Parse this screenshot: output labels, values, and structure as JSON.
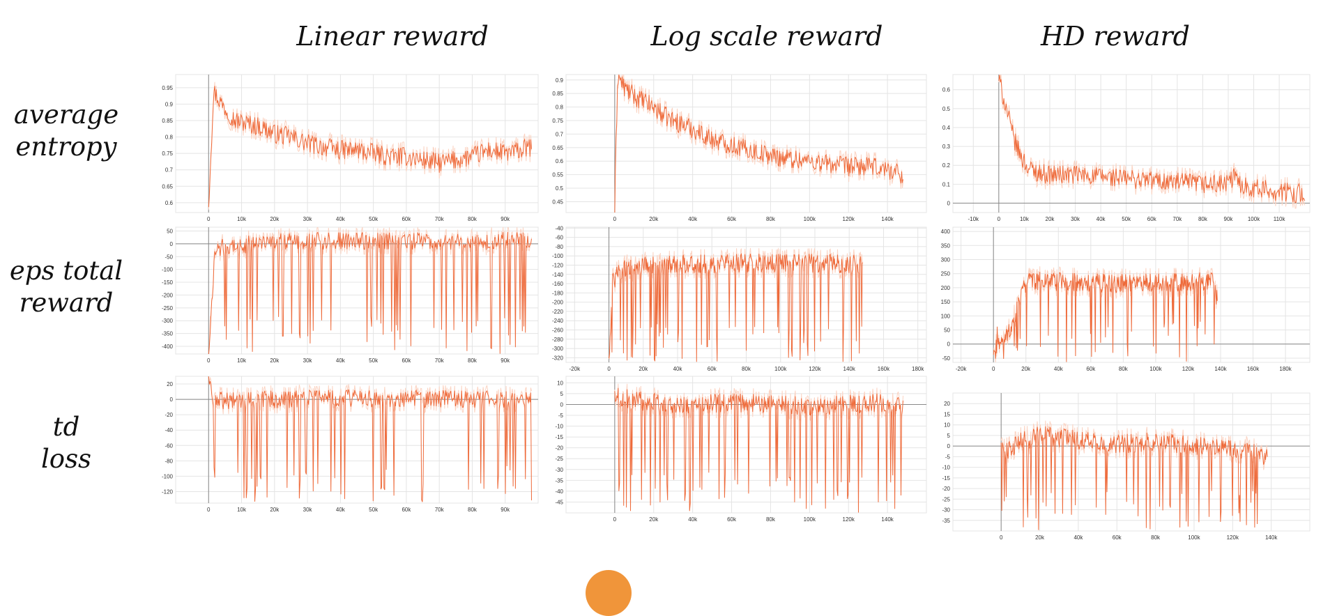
{
  "column_titles": [
    "Linear reward",
    "Log scale reward",
    "HD reward"
  ],
  "row_labels": [
    {
      "line1": "average",
      "line2": "entropy"
    },
    {
      "line1": "eps total",
      "line2": "reward"
    },
    {
      "line1": "td",
      "line2": "loss"
    }
  ],
  "colors": {
    "series": "#ee6a3a",
    "raw": "#fbd3c2",
    "grid": "#e4e4e4",
    "axis": "#888888",
    "page": "#ffffff",
    "accent_dot": "#f0953a"
  },
  "chart_data": [
    {
      "id": "linear-entropy",
      "type": "line",
      "row": "average entropy",
      "column": "Linear reward",
      "x_ticks": [
        0,
        10000,
        20000,
        30000,
        40000,
        50000,
        60000,
        70000,
        80000,
        90000
      ],
      "x_tick_labels": [
        "0",
        "10k",
        "20k",
        "30k",
        "40k",
        "50k",
        "60k",
        "70k",
        "80k",
        "90k"
      ],
      "y_ticks": [
        0.6,
        0.65,
        0.7,
        0.75,
        0.8,
        0.85,
        0.9,
        0.95
      ],
      "y_tick_labels": [
        "0.6",
        "0.65",
        "0.7",
        "0.75",
        "0.8",
        "0.85",
        "0.9",
        "0.95"
      ],
      "xlim": [
        -10000,
        100000
      ],
      "ylim": [
        0.57,
        0.99
      ],
      "grid": true,
      "x": [
        0,
        1500,
        4000,
        8000,
        12000,
        16000,
        20000,
        25000,
        30000,
        35000,
        40000,
        45000,
        50000,
        55000,
        60000,
        65000,
        70000,
        75000,
        80000,
        85000,
        90000,
        95000,
        98000
      ],
      "y": [
        0.6,
        0.94,
        0.9,
        0.85,
        0.84,
        0.83,
        0.81,
        0.8,
        0.78,
        0.77,
        0.76,
        0.76,
        0.75,
        0.74,
        0.74,
        0.73,
        0.72,
        0.73,
        0.74,
        0.76,
        0.75,
        0.76,
        0.77
      ]
    },
    {
      "id": "log-entropy",
      "type": "line",
      "row": "average entropy",
      "column": "Log scale reward",
      "x_ticks": [
        0,
        20000,
        40000,
        60000,
        80000,
        100000,
        120000,
        140000
      ],
      "x_tick_labels": [
        "0",
        "20k",
        "40k",
        "60k",
        "80k",
        "100k",
        "120k",
        "140k"
      ],
      "y_ticks": [
        0.45,
        0.5,
        0.55,
        0.6,
        0.65,
        0.7,
        0.75,
        0.8,
        0.85,
        0.9
      ],
      "y_tick_labels": [
        "0.45",
        "0.5",
        "0.55",
        "0.6",
        "0.65",
        "0.7",
        "0.75",
        "0.8",
        "0.85",
        "0.9"
      ],
      "xlim": [
        -25000,
        160000
      ],
      "ylim": [
        0.41,
        0.92
      ],
      "grid": true,
      "x": [
        0,
        1500,
        5000,
        10000,
        15000,
        20000,
        25000,
        30000,
        40000,
        50000,
        60000,
        70000,
        80000,
        90000,
        100000,
        110000,
        120000,
        130000,
        140000,
        148000
      ],
      "y": [
        0.42,
        0.92,
        0.87,
        0.84,
        0.82,
        0.8,
        0.77,
        0.75,
        0.72,
        0.68,
        0.66,
        0.64,
        0.62,
        0.61,
        0.6,
        0.59,
        0.58,
        0.58,
        0.57,
        0.55
      ]
    },
    {
      "id": "hd-entropy",
      "type": "line",
      "row": "average entropy",
      "column": "HD reward",
      "x_ticks": [
        -10000,
        0,
        10000,
        20000,
        30000,
        40000,
        50000,
        60000,
        70000,
        80000,
        90000,
        100000,
        110000
      ],
      "x_tick_labels": [
        "-10k",
        "0",
        "10k",
        "20k",
        "30k",
        "40k",
        "50k",
        "60k",
        "70k",
        "80k",
        "90k",
        "100k",
        "110k"
      ],
      "y_ticks": [
        0,
        0.1,
        0.2,
        0.3,
        0.4,
        0.5,
        0.6
      ],
      "y_tick_labels": [
        "0",
        "0.1",
        "0.2",
        "0.3",
        "0.4",
        "0.5",
        "0.6"
      ],
      "xlim": [
        -18000,
        122000
      ],
      "ylim": [
        -0.05,
        0.68
      ],
      "grid": true,
      "x": [
        0,
        1000,
        3000,
        5000,
        7000,
        9000,
        12000,
        16000,
        20000,
        30000,
        40000,
        50000,
        60000,
        70000,
        80000,
        90000,
        92000,
        95000,
        100000,
        110000,
        120000
      ],
      "y": [
        0.66,
        0.6,
        0.5,
        0.38,
        0.3,
        0.24,
        0.18,
        0.16,
        0.15,
        0.15,
        0.14,
        0.13,
        0.12,
        0.11,
        0.1,
        0.1,
        0.14,
        0.1,
        0.08,
        0.06,
        0.05
      ]
    },
    {
      "id": "linear-reward",
      "type": "line",
      "row": "eps total reward",
      "column": "Linear reward",
      "x_ticks": [
        0,
        10000,
        20000,
        30000,
        40000,
        50000,
        60000,
        70000,
        80000,
        90000
      ],
      "x_tick_labels": [
        "0",
        "10k",
        "20k",
        "30k",
        "40k",
        "50k",
        "60k",
        "70k",
        "80k",
        "90k"
      ],
      "y_ticks": [
        -400,
        -350,
        -300,
        -250,
        -200,
        -150,
        -100,
        -50,
        0,
        50
      ],
      "y_tick_labels": [
        "-400",
        "-350",
        "-300",
        "-250",
        "-200",
        "-150",
        "-100",
        "-50",
        "0",
        "50"
      ],
      "xlim": [
        -10000,
        100000
      ],
      "ylim": [
        -430,
        65
      ],
      "grid": true,
      "x": [
        0,
        2000,
        5000,
        10000,
        15000,
        20000,
        25000,
        30000,
        35000,
        40000,
        45000,
        50000,
        55000,
        60000,
        65000,
        70000,
        75000,
        80000,
        85000,
        90000,
        95000,
        98000
      ],
      "y": [
        -430,
        -20,
        -10,
        -5,
        0,
        5,
        8,
        10,
        10,
        12,
        10,
        12,
        10,
        12,
        10,
        12,
        10,
        12,
        10,
        12,
        10,
        10
      ]
    },
    {
      "id": "log-reward",
      "type": "line",
      "row": "eps total reward",
      "column": "Log scale reward",
      "x_ticks": [
        -20000,
        0,
        20000,
        40000,
        60000,
        80000,
        100000,
        120000,
        140000,
        160000,
        180000
      ],
      "x_tick_labels": [
        "-20k",
        "0",
        "20k",
        "40k",
        "60k",
        "80k",
        "100k",
        "120k",
        "140k",
        "160k",
        "180k"
      ],
      "y_ticks": [
        -320,
        -300,
        -280,
        -260,
        -240,
        -220,
        -200,
        -180,
        -160,
        -140,
        -120,
        -100,
        -80,
        -60,
        -40
      ],
      "y_tick_labels": [
        "-320",
        "-300",
        "-280",
        "-260",
        "-240",
        "-220",
        "-200",
        "-180",
        "-160",
        "-140",
        "-120",
        "-100",
        "-80",
        "-60",
        "-40"
      ],
      "xlim": [
        -25000,
        185000
      ],
      "ylim": [
        -330,
        -38
      ],
      "grid": true,
      "x": [
        0,
        2000,
        5000,
        10000,
        20000,
        30000,
        40000,
        60000,
        80000,
        100000,
        120000,
        140000,
        148000
      ],
      "y": [
        -320,
        -160,
        -140,
        -125,
        -120,
        -118,
        -118,
        -117,
        -116,
        -115,
        -116,
        -117,
        -118
      ]
    },
    {
      "id": "hd-reward",
      "type": "line",
      "row": "eps total reward",
      "column": "HD reward",
      "x_ticks": [
        -20000,
        0,
        20000,
        40000,
        60000,
        80000,
        100000,
        120000,
        140000,
        160000,
        180000
      ],
      "x_tick_labels": [
        "-20k",
        "0",
        "20k",
        "40k",
        "60k",
        "80k",
        "100k",
        "120k",
        "140k",
        "160k",
        "180k"
      ],
      "y_ticks": [
        -50,
        0,
        50,
        100,
        150,
        200,
        250,
        300,
        350,
        400
      ],
      "y_tick_labels": [
        "-50",
        "0",
        "50",
        "100",
        "150",
        "200",
        "250",
        "300",
        "350",
        "400"
      ],
      "xlim": [
        -25000,
        195000
      ],
      "ylim": [
        -65,
        415
      ],
      "grid": true,
      "x": [
        0,
        3000,
        6000,
        10000,
        14000,
        18000,
        22000,
        30000,
        40000,
        60000,
        80000,
        100000,
        120000,
        135000,
        138000
      ],
      "y": [
        -40,
        0,
        20,
        40,
        120,
        200,
        220,
        225,
        220,
        220,
        215,
        218,
        220,
        225,
        150
      ]
    },
    {
      "id": "linear-loss",
      "type": "line",
      "row": "td loss",
      "column": "Linear reward",
      "x_ticks": [
        0,
        10000,
        20000,
        30000,
        40000,
        50000,
        60000,
        70000,
        80000,
        90000
      ],
      "x_tick_labels": [
        "0",
        "10k",
        "20k",
        "30k",
        "40k",
        "50k",
        "60k",
        "70k",
        "80k",
        "90k"
      ],
      "y_ticks": [
        -120,
        -100,
        -80,
        -60,
        -40,
        -20,
        0,
        20
      ],
      "y_tick_labels": [
        "-120",
        "-100",
        "-80",
        "-60",
        "-40",
        "-20",
        "0",
        "20"
      ],
      "xlim": [
        -10000,
        100000
      ],
      "ylim": [
        -135,
        30
      ],
      "grid": true,
      "x": [
        0,
        1000,
        5000,
        10000,
        20000,
        30000,
        40000,
        50000,
        60000,
        70000,
        80000,
        90000,
        98000
      ],
      "y": [
        28,
        0,
        -2,
        -1,
        0,
        1,
        2,
        1,
        0,
        1,
        0,
        -1,
        -2
      ]
    },
    {
      "id": "log-loss",
      "type": "line",
      "row": "td loss",
      "column": "Log scale reward",
      "x_ticks": [
        0,
        20000,
        40000,
        60000,
        80000,
        100000,
        120000,
        140000
      ],
      "x_tick_labels": [
        "0",
        "20k",
        "40k",
        "60k",
        "80k",
        "100k",
        "120k",
        "140k"
      ],
      "y_ticks": [
        -45,
        -40,
        -35,
        -30,
        -25,
        -20,
        -15,
        -10,
        -5,
        0,
        5,
        10
      ],
      "y_tick_labels": [
        "-45",
        "-40",
        "-35",
        "-30",
        "-25",
        "-20",
        "-15",
        "-10",
        "-5",
        "0",
        "5",
        "10"
      ],
      "xlim": [
        -25000,
        160000
      ],
      "ylim": [
        -50,
        13
      ],
      "grid": true,
      "x": [
        0,
        5000,
        10000,
        20000,
        40000,
        60000,
        80000,
        100000,
        120000,
        140000,
        148000
      ],
      "y": [
        5,
        3,
        2,
        1,
        0,
        1,
        0,
        -1,
        0,
        1,
        -2
      ]
    },
    {
      "id": "hd-loss",
      "type": "line",
      "row": "td loss",
      "column": "HD reward",
      "x_ticks": [
        0,
        20000,
        40000,
        60000,
        80000,
        100000,
        120000,
        140000
      ],
      "x_tick_labels": [
        "0",
        "20k",
        "40k",
        "60k",
        "80k",
        "100k",
        "120k",
        "140k"
      ],
      "y_ticks": [
        -35,
        -30,
        -25,
        -20,
        -15,
        -10,
        -5,
        0,
        5,
        10,
        15,
        20
      ],
      "y_tick_labels": [
        "-35",
        "-30",
        "-25",
        "-20",
        "-15",
        "-10",
        "-5",
        "0",
        "5",
        "10",
        "15",
        "20"
      ],
      "xlim": [
        -25000,
        160000
      ],
      "ylim": [
        -40,
        25
      ],
      "grid": true,
      "x": [
        0,
        3000,
        10000,
        20000,
        40000,
        60000,
        80000,
        100000,
        120000,
        138000
      ],
      "y": [
        0,
        -3,
        2,
        5,
        3,
        1,
        2,
        0,
        -1,
        -5
      ]
    }
  ]
}
